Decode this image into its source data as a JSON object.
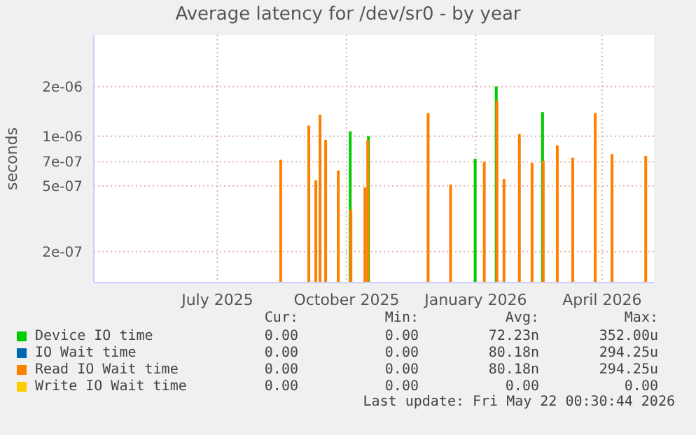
{
  "chart_data": {
    "type": "bar",
    "title": "Average latency for /dev/sr0 - by year",
    "ylabel": "seconds",
    "log": "y",
    "grid": true,
    "legend": "bottom",
    "xlim": [
      "2025-04-04",
      "2026-05-08"
    ],
    "xticks": [
      {
        "value": "2025-07-01",
        "label": "July 2025"
      },
      {
        "value": "2025-10-01",
        "label": "October 2025"
      },
      {
        "value": "2026-01-01",
        "label": "January 2026"
      },
      {
        "value": "2026-04-01",
        "label": "April 2026"
      }
    ],
    "ylim": [
      1.3e-07,
      4.1e-06
    ],
    "yticks": [
      {
        "value": 2e-07,
        "label": "2e-07"
      },
      {
        "value": 5e-07,
        "label": "5e-07"
      },
      {
        "value": 7e-07,
        "label": "7e-07"
      },
      {
        "value": 1e-06,
        "label": "1e-06"
      },
      {
        "value": 2e-06,
        "label": "2e-06"
      }
    ],
    "series": [
      {
        "name": "Device IO time",
        "color": "#00cc00",
        "x": [
          "2025-10-04",
          "2025-10-17",
          "2026-01-01",
          "2026-01-16",
          "2026-02-18"
        ],
        "values": [
          1.07e-06,
          1e-06,
          7.3e-07,
          2e-06,
          1.4e-06
        ]
      },
      {
        "name": "IO Wait time",
        "color": "#0066b3"
      },
      {
        "name": "Read IO Wait time",
        "color": "#ff8000",
        "x": [
          "2025-08-15",
          "2025-09-04",
          "2025-09-09",
          "2025-09-12",
          "2025-09-16",
          "2025-09-25",
          "2025-10-04",
          "2025-10-14",
          "2025-10-16",
          "2025-11-28",
          "2025-12-14",
          "2026-01-07",
          "2026-01-16",
          "2026-01-21",
          "2026-02-01",
          "2026-02-10",
          "2026-02-18",
          "2026-02-28",
          "2026-03-11",
          "2026-03-27",
          "2026-04-08",
          "2026-05-02"
        ],
        "values": [
          7.2e-07,
          1.16e-06,
          5.4e-07,
          1.35e-06,
          9.5e-07,
          6.2e-07,
          3.6e-07,
          4.9e-07,
          9.5e-07,
          1.38e-06,
          5.1e-07,
          7e-07,
          1.64e-06,
          5.5e-07,
          1.03e-06,
          6.9e-07,
          7.1e-07,
          8.8e-07,
          7.4e-07,
          1.38e-06,
          7.8e-07,
          7.6e-07
        ]
      },
      {
        "name": "Write IO Wait time",
        "color": "#ffcc00"
      }
    ],
    "annotations": [
      "Cur:",
      "Min:",
      "Avg:",
      "Max:",
      "0.00",
      "0.00",
      "72.23n",
      "352.00u",
      "0.00",
      "0.00",
      "80.18n",
      "294.25u",
      "0.00",
      "0.00",
      "80.18n",
      "294.25u",
      "0.00",
      "0.00",
      "0.00",
      "0.00",
      "Last update: Fri May 22 00:30:44 2026"
    ]
  }
}
